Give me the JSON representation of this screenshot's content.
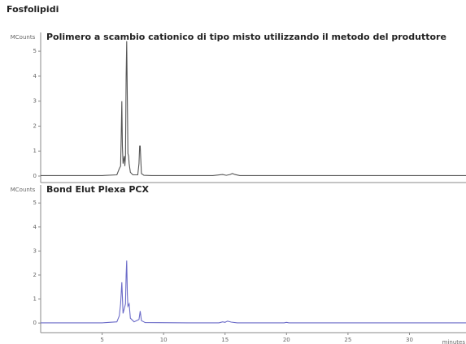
{
  "title": "Fosfolipidi",
  "chart_data": [
    {
      "type": "line",
      "title": "Polimero a scambio cationico di tipo misto utilizzando il metodo del produttore",
      "ylabel": "MCounts",
      "x": [
        0,
        5,
        6.2,
        6.4,
        6.5,
        6.55,
        6.6,
        6.65,
        6.7,
        6.8,
        6.85,
        6.9,
        6.95,
        7.0,
        7.05,
        7.1,
        7.15,
        7.2,
        7.3,
        7.5,
        7.9,
        8.0,
        8.05,
        8.1,
        8.15,
        8.2,
        8.4,
        9,
        12,
        14,
        14.8,
        15.1,
        15.4,
        15.6,
        15.8,
        16.2,
        20,
        34.6
      ],
      "series": [
        {
          "color": "#555555",
          "values": [
            0.02,
            0.02,
            0.05,
            0.3,
            0.4,
            1.5,
            3.0,
            1.2,
            0.5,
            0.8,
            0.4,
            0.8,
            4.0,
            5.4,
            3.0,
            0.9,
            0.8,
            0.5,
            0.15,
            0.05,
            0.05,
            0.5,
            1.2,
            1.2,
            0.6,
            0.1,
            0.03,
            0.02,
            0.02,
            0.02,
            0.06,
            0.03,
            0.06,
            0.1,
            0.06,
            0.02,
            0.02,
            0.02
          ]
        }
      ],
      "xlim": [
        0,
        34.6
      ],
      "ylim": [
        -0.26,
        5.75
      ],
      "yticks": [
        0,
        1,
        2,
        3,
        4,
        5
      ]
    },
    {
      "type": "line",
      "title": "Bond Elut Plexa PCX",
      "ylabel": "MCounts",
      "xlabel": "minutes",
      "x": [
        0,
        5,
        6.2,
        6.4,
        6.5,
        6.6,
        6.7,
        6.8,
        6.9,
        6.95,
        7.0,
        7.05,
        7.1,
        7.2,
        7.3,
        7.6,
        8.0,
        8.1,
        8.2,
        8.5,
        12,
        14.5,
        14.8,
        15.0,
        15.2,
        15.5,
        16,
        19.8,
        20.0,
        20.2,
        34.6
      ],
      "series": [
        {
          "color": "#6b6bc8",
          "values": [
            0.01,
            0.01,
            0.05,
            0.3,
            0.8,
            1.7,
            0.4,
            0.6,
            0.8,
            2.0,
            2.6,
            1.2,
            0.7,
            0.8,
            0.2,
            0.05,
            0.15,
            0.5,
            0.1,
            0.02,
            0.01,
            0.01,
            0.05,
            0.03,
            0.08,
            0.04,
            0.01,
            0.01,
            0.03,
            0.01,
            0.01
          ]
        }
      ],
      "xlim": [
        0,
        34.6
      ],
      "ylim": [
        -0.4,
        5.75
      ],
      "yticks": [
        0,
        1,
        2,
        3,
        4,
        5
      ],
      "xticks": [
        5,
        10,
        15,
        20,
        25,
        30
      ]
    }
  ]
}
